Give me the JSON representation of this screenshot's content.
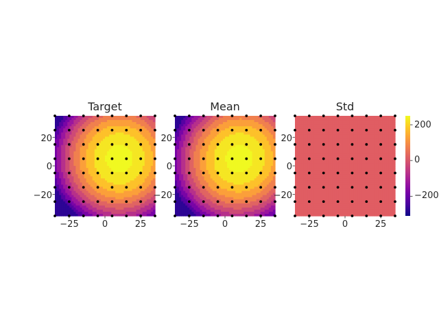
{
  "chart_data": [
    {
      "type": "heatmap",
      "title": "Target",
      "xlabel": "",
      "ylabel": "",
      "xlim": [
        -35,
        35
      ],
      "ylim": [
        -35,
        35
      ],
      "x_ticks": [
        -25,
        0,
        25
      ],
      "x_tick_labels": [
        "−25",
        "0",
        "25"
      ],
      "y_ticks": [
        -20,
        0,
        20
      ],
      "y_tick_labels": [
        "−20",
        "0",
        "20"
      ],
      "field": "filled contours of a smooth bump peaking near (10, 5); about -300 at bottom-left, about 250 at peak",
      "levels": [
        -300,
        -250,
        -200,
        -150,
        -100,
        -50,
        0,
        50,
        100,
        150,
        200,
        250
      ],
      "peak": {
        "x": 10,
        "y": 5
      },
      "grid_on": false
    },
    {
      "type": "heatmap",
      "title": "Mean",
      "xlabel": "",
      "ylabel": "",
      "xlim": [
        -35,
        35
      ],
      "ylim": [
        -35,
        35
      ],
      "x_ticks": [
        -25,
        0,
        25
      ],
      "x_tick_labels": [
        "−25",
        "0",
        "25"
      ],
      "y_ticks": [
        -20,
        0,
        20
      ],
      "y_tick_labels": [
        "−20",
        "0",
        "20"
      ],
      "field": "nearly identical to Target",
      "levels": [
        -300,
        -250,
        -200,
        -150,
        -100,
        -50,
        0,
        50,
        100,
        150,
        200,
        250
      ],
      "peak": {
        "x": 10,
        "y": 5
      },
      "grid_on": false
    },
    {
      "type": "heatmap",
      "title": "Std",
      "xlabel": "",
      "ylabel": "",
      "xlim": [
        -35,
        35
      ],
      "ylim": [
        -35,
        35
      ],
      "x_ticks": [
        -25,
        0,
        25
      ],
      "x_tick_labels": [
        "−25",
        "0",
        "25"
      ],
      "y_ticks": [
        -20,
        0,
        20
      ],
      "y_tick_labels": [
        "−20",
        "0",
        "20"
      ],
      "field": "uniform",
      "uniform_color": "#e05d63",
      "grid_on": false
    }
  ],
  "observation_points": {
    "x": [
      -35,
      -25,
      -15,
      -5,
      5,
      15,
      25,
      35
    ],
    "y": [
      -35,
      -25,
      -15,
      -5,
      5,
      15,
      25,
      35
    ],
    "color": "#000000"
  },
  "colorbar": {
    "colormap": "plasma",
    "range": [
      -310,
      250
    ],
    "ticks": [
      200,
      0,
      -200
    ],
    "tick_labels": [
      "200",
      "0",
      "−200"
    ]
  },
  "colors": {
    "plasma_stops": [
      "#0d0887",
      "#46039f",
      "#7201a8",
      "#9c179e",
      "#bd3786",
      "#d8576b",
      "#ed7953",
      "#fb9f3a",
      "#fdca26",
      "#f0f921"
    ]
  }
}
